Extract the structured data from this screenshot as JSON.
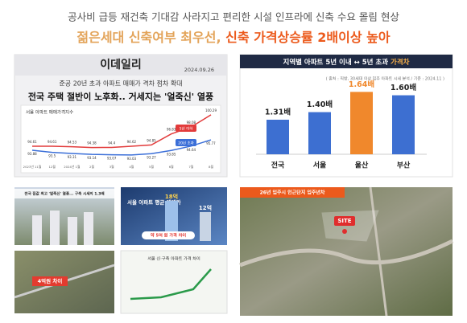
{
  "header": {
    "line1": "공사비 급등 재건축 기대감 사라지고 편리한 시설 인프라에 신축 수요 몰림 현상",
    "line2_a": "젊은세대 신축여부 최우선, ",
    "line2_b": "신축 가격상승률 2배이상 높아"
  },
  "news": {
    "outlet": "이데일리",
    "date": "2024.09.26",
    "subtitle": "준공 20년 초과 아파트 매매가 격차 점차 확대",
    "headline": "전국 주택 절반이 노후화.. 거세지는 '얼죽신' 열풍",
    "chart": {
      "type": "line",
      "title": "서울 아파트 매매가격지수",
      "categories": [
        "2023년 11월",
        "12월",
        "2024년 1월",
        "2월",
        "3월",
        "4월",
        "5월",
        "6월",
        "7월",
        "8월"
      ],
      "ylim": [
        92,
        101
      ],
      "series": [
        {
          "name": "5년 이하",
          "color": "#e23b3b",
          "values": [
            94.61,
            94.61,
            94.53,
            94.38,
            94.4,
            94.62,
            94.85,
            96.83,
            98.08,
            100.29
          ]
        },
        {
          "name": "20년 초과",
          "color": "#3b6fd8",
          "values": [
            93.88,
            93.5,
            93.31,
            93.14,
            93.07,
            93.03,
            93.27,
            93.85,
            94.64,
            95.77
          ]
        }
      ]
    }
  },
  "chart_data": {
    "type": "bar",
    "title": "지역별 아파트 5년 이내 ↔ 5년 초과 ",
    "title_highlight": "가격차",
    "source": "( 출처 : 직방, 30세대 이상 입주 아파트 시세 분석 / 기준 : 2024.11 )",
    "categories": [
      "전국",
      "서울",
      "울산",
      "부산"
    ],
    "values": [
      1.31,
      1.4,
      1.64,
      1.6
    ],
    "value_labels": [
      "1.31배",
      "1.40배",
      "1.64배",
      "1.60배"
    ],
    "colors": [
      "#3d6fd1",
      "#3d6fd1",
      "#f0882c",
      "#3d6fd1"
    ],
    "ylim": [
      0.9,
      1.8
    ]
  },
  "thumbs": {
    "t1": "전국 집값 최고 '얼죽신' 열풍... 구축 시세의 1.3배",
    "t2_title": "서울 아파트 평균 매매가",
    "t2_a": "18억",
    "t2_b": "12억",
    "t2_diff": "약 5억 원 가격 차이",
    "t3": "4억원 차이",
    "t4": "서울 신·구축 아파트 가격 차이"
  },
  "map": {
    "title": "26년 입주시 인근단지 입주년차",
    "site": "SITE"
  }
}
